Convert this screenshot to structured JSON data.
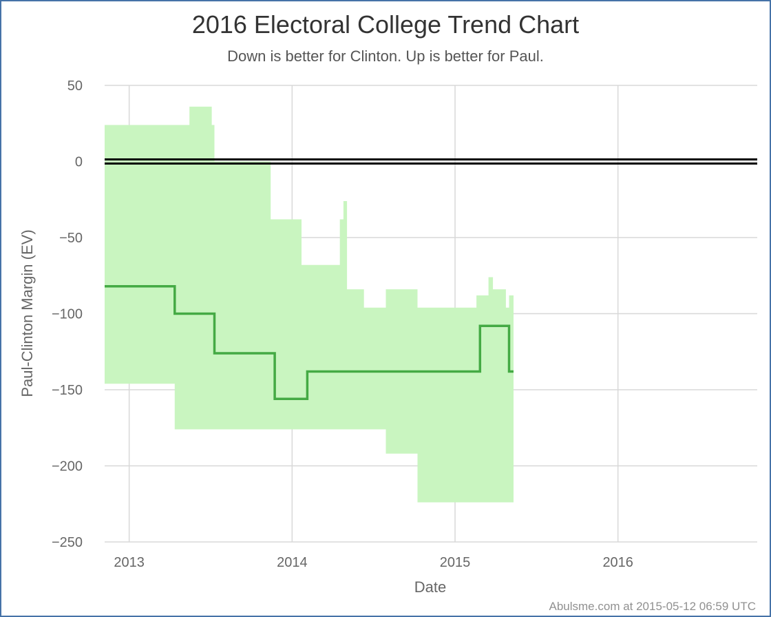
{
  "chart_data": {
    "type": "area",
    "title": "2016 Electoral College Trend Chart",
    "subtitle": "Down is better for Clinton. Up is better for Paul.",
    "xlabel": "Date",
    "ylabel": "Paul-Clinton Margin (EV)",
    "xlim": [
      "2012-11-07",
      "2016-11-08"
    ],
    "ylim": [
      -250,
      50
    ],
    "x_ticks": [
      "2013",
      "2014",
      "2015",
      "2016"
    ],
    "y_ticks": [
      50,
      0,
      -50,
      -100,
      -150,
      -200,
      -250
    ],
    "grid": true,
    "legend": "none",
    "reference_line": {
      "y": 0,
      "color": "#000000"
    },
    "colors": {
      "line": "#44aa44",
      "band": "#c9f5c0",
      "frame": "#4572a7"
    },
    "series": [
      {
        "type": "step-line",
        "x": [
          "2012-11-07",
          "2013-04-13",
          "2013-07-11",
          "2013-11-23",
          "2014-02-04",
          "2015-02-26",
          "2015-05-02",
          "2015-05-12"
        ],
        "values": [
          -82,
          -100,
          -126,
          -156,
          -138,
          -108,
          -138,
          -138
        ]
      },
      {
        "type": "step-band",
        "x": [
          "2012-11-07",
          "2013-04-13",
          "2013-05-16",
          "2013-07-05",
          "2013-07-11",
          "2013-11-14",
          "2014-01-22",
          "2014-04-18",
          "2014-04-26",
          "2014-05-04",
          "2014-06-11",
          "2014-07-22",
          "2014-07-30",
          "2014-10-01",
          "2014-10-09",
          "2015-02-11",
          "2015-02-18",
          "2015-03-17",
          "2015-03-27",
          "2015-04-25",
          "2015-05-02",
          "2015-05-12"
        ],
        "upper": [
          24,
          24,
          36,
          24,
          0,
          -38,
          -68,
          -38,
          -26,
          -84,
          -96,
          -96,
          -84,
          -84,
          -96,
          -96,
          -88,
          -76,
          -84,
          -96,
          -88,
          -88
        ],
        "lower": [
          -146,
          -176,
          -176,
          -176,
          -176,
          -176,
          -176,
          -176,
          -176,
          -176,
          -176,
          -176,
          -192,
          -192,
          -224,
          -224,
          -224,
          -224,
          -224,
          -224,
          -224,
          -224
        ]
      }
    ]
  },
  "credit": "Abulsme.com at 2015-05-12 06:59 UTC"
}
